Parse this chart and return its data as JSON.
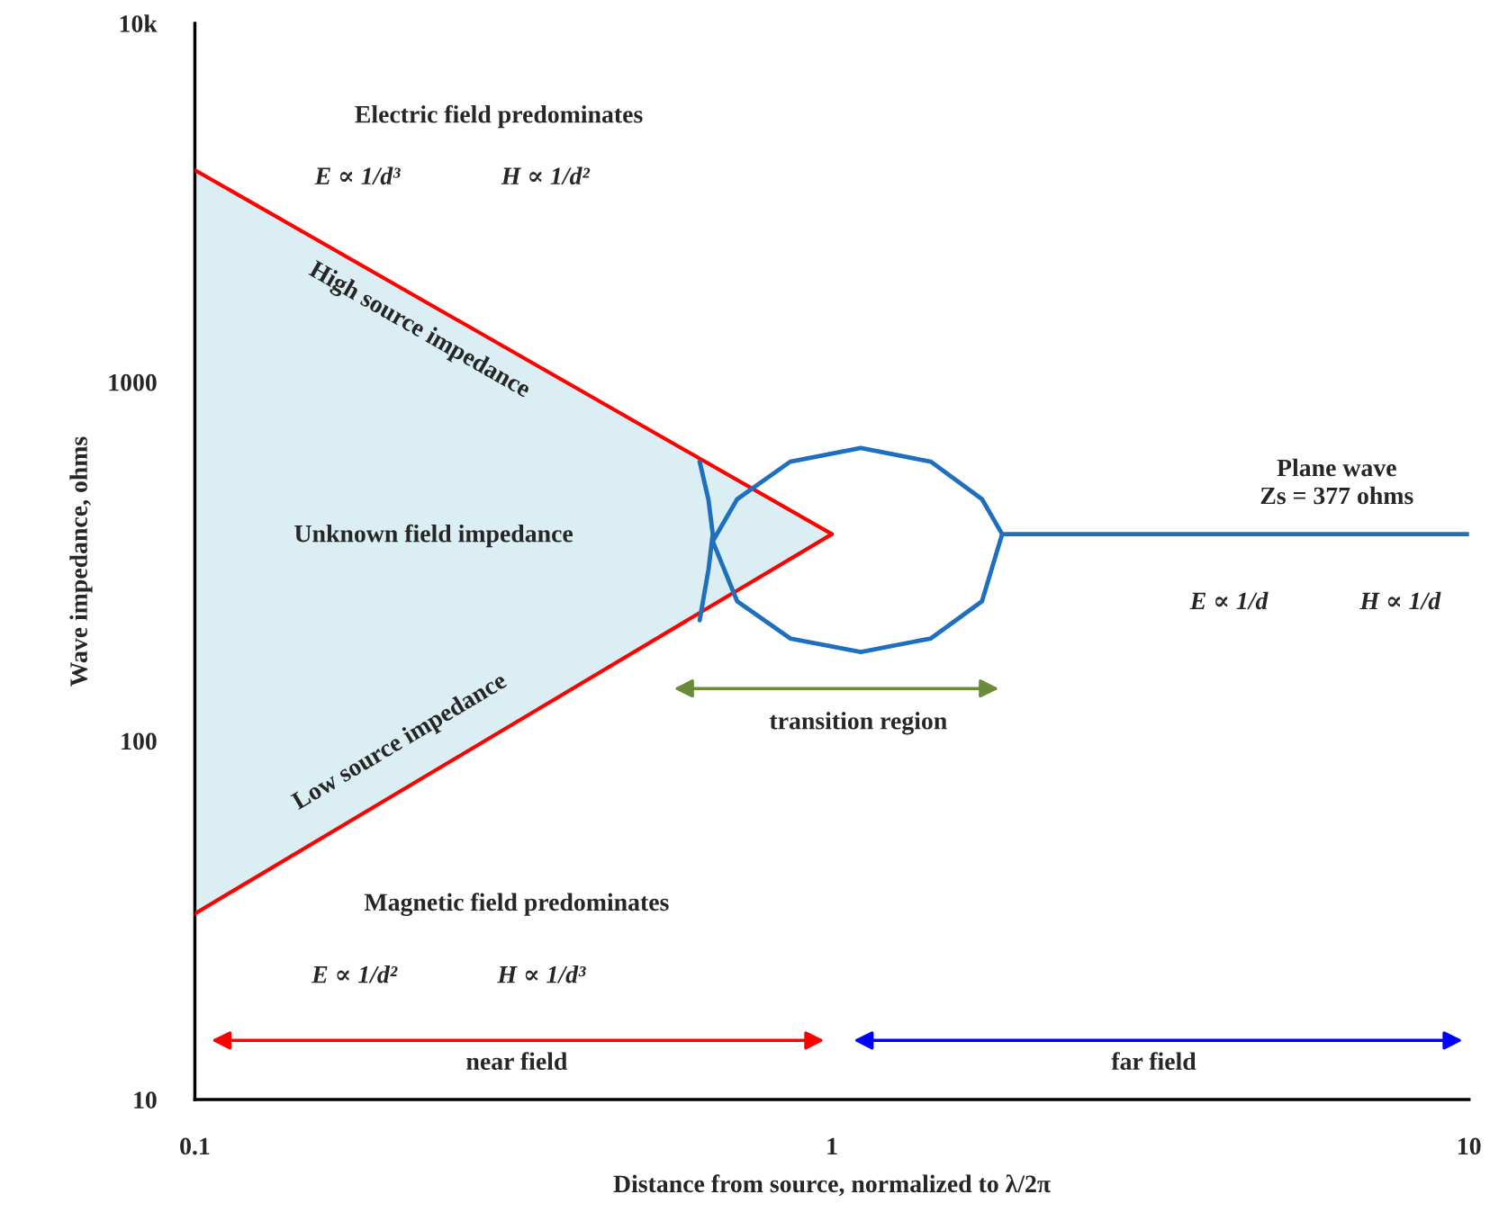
{
  "chart_data": {
    "type": "line",
    "xlabel": "Distance from source, normalized to λ/2π",
    "ylabel": "Wave impedance, ohms",
    "log": "xy",
    "grid": false,
    "xlim": [
      0.1,
      10
    ],
    "xticks": [
      0.1,
      1,
      10
    ],
    "ylim": [
      10,
      10000
    ],
    "yticks": [
      10,
      100,
      1000,
      {
        "value": 10000,
        "label": "10k"
      }
    ],
    "series": [
      {
        "color": "#ff0000",
        "x": [
          0.1,
          1
        ],
        "values": [
          3900,
          377
        ],
        "lower": [
          33,
          377
        ],
        "upper": [
          3900,
          377
        ]
      },
      {
        "color": "#ff0000",
        "x": [
          0.1,
          1
        ],
        "values": [
          33,
          377
        ]
      },
      {
        "color": "#1f6fbf",
        "x": [
          0.62,
          0.64,
          0.65,
          0.64,
          0.62
        ],
        "values": [
          600,
          470,
          377,
          300,
          217
        ]
      },
      {
        "color": "#1f6fbf",
        "x": [
          1.85,
          1.72,
          1.43,
          1.11,
          0.86,
          0.71,
          0.65,
          0.71,
          0.86,
          1.11,
          1.43,
          1.72,
          1.85,
          10
        ],
        "values": [
          377,
          472,
          600,
          655,
          600,
          472,
          360,
          245,
          193,
          177,
          193,
          245,
          377,
          377
        ]
      }
    ],
    "annotations": [
      "Electric field predominates",
      "E ∝ 1/d³",
      "H ∝ 1/d²",
      "High source impedance",
      "Unknown field impedance",
      "Low source impedance",
      "Plane wave\nZs = 377 ohms",
      "E ∝ 1/d",
      "H ∝ 1/d",
      "Magnetic field predominates",
      "E ∝ 1/d²",
      "H ∝ 1/d³",
      "transition region",
      "near field",
      "far field"
    ]
  }
}
